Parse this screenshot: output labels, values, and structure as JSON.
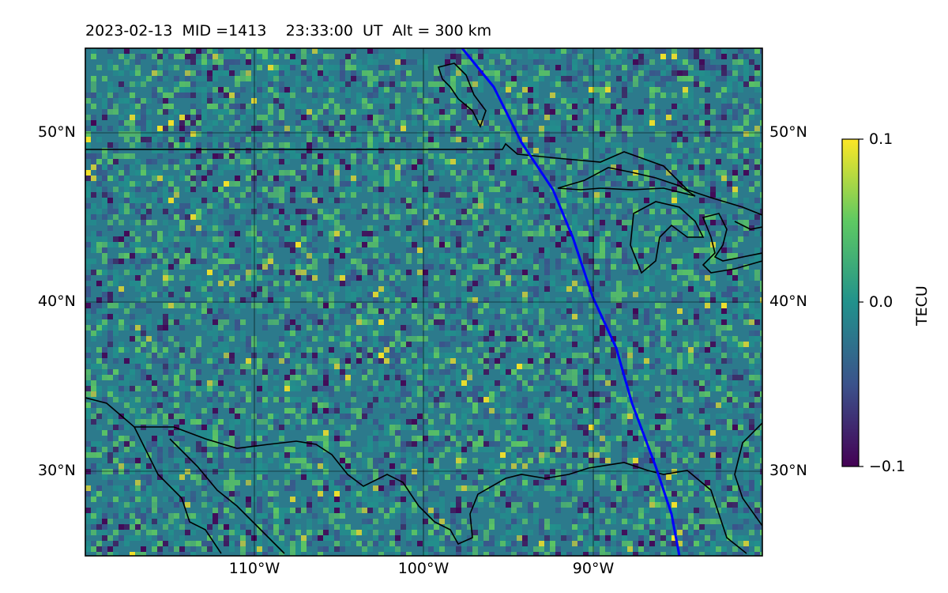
{
  "title": "2023-02-13  MID =1413    23:33:00  UT  Alt = 300 km",
  "map": {
    "lat_ticks": [
      "50°N",
      "40°N",
      "30°N"
    ],
    "lon_ticks": [
      "110°W",
      "100°W",
      "90°W"
    ],
    "lat_range": [
      25,
      55
    ],
    "lon_range": [
      -120,
      -80
    ],
    "projection": "equirectangular",
    "gridlines": true,
    "terminator_color": "#0000ff",
    "coastline_color": "#000000"
  },
  "colorbar": {
    "label": "TECU",
    "tick_labels": [
      "0.1",
      "0.0",
      "−0.1"
    ],
    "range": [
      -0.1,
      0.1
    ],
    "colormap": "viridis",
    "colors": [
      "#440154",
      "#3b528b",
      "#21918c",
      "#5ec962",
      "#fde725"
    ]
  }
}
